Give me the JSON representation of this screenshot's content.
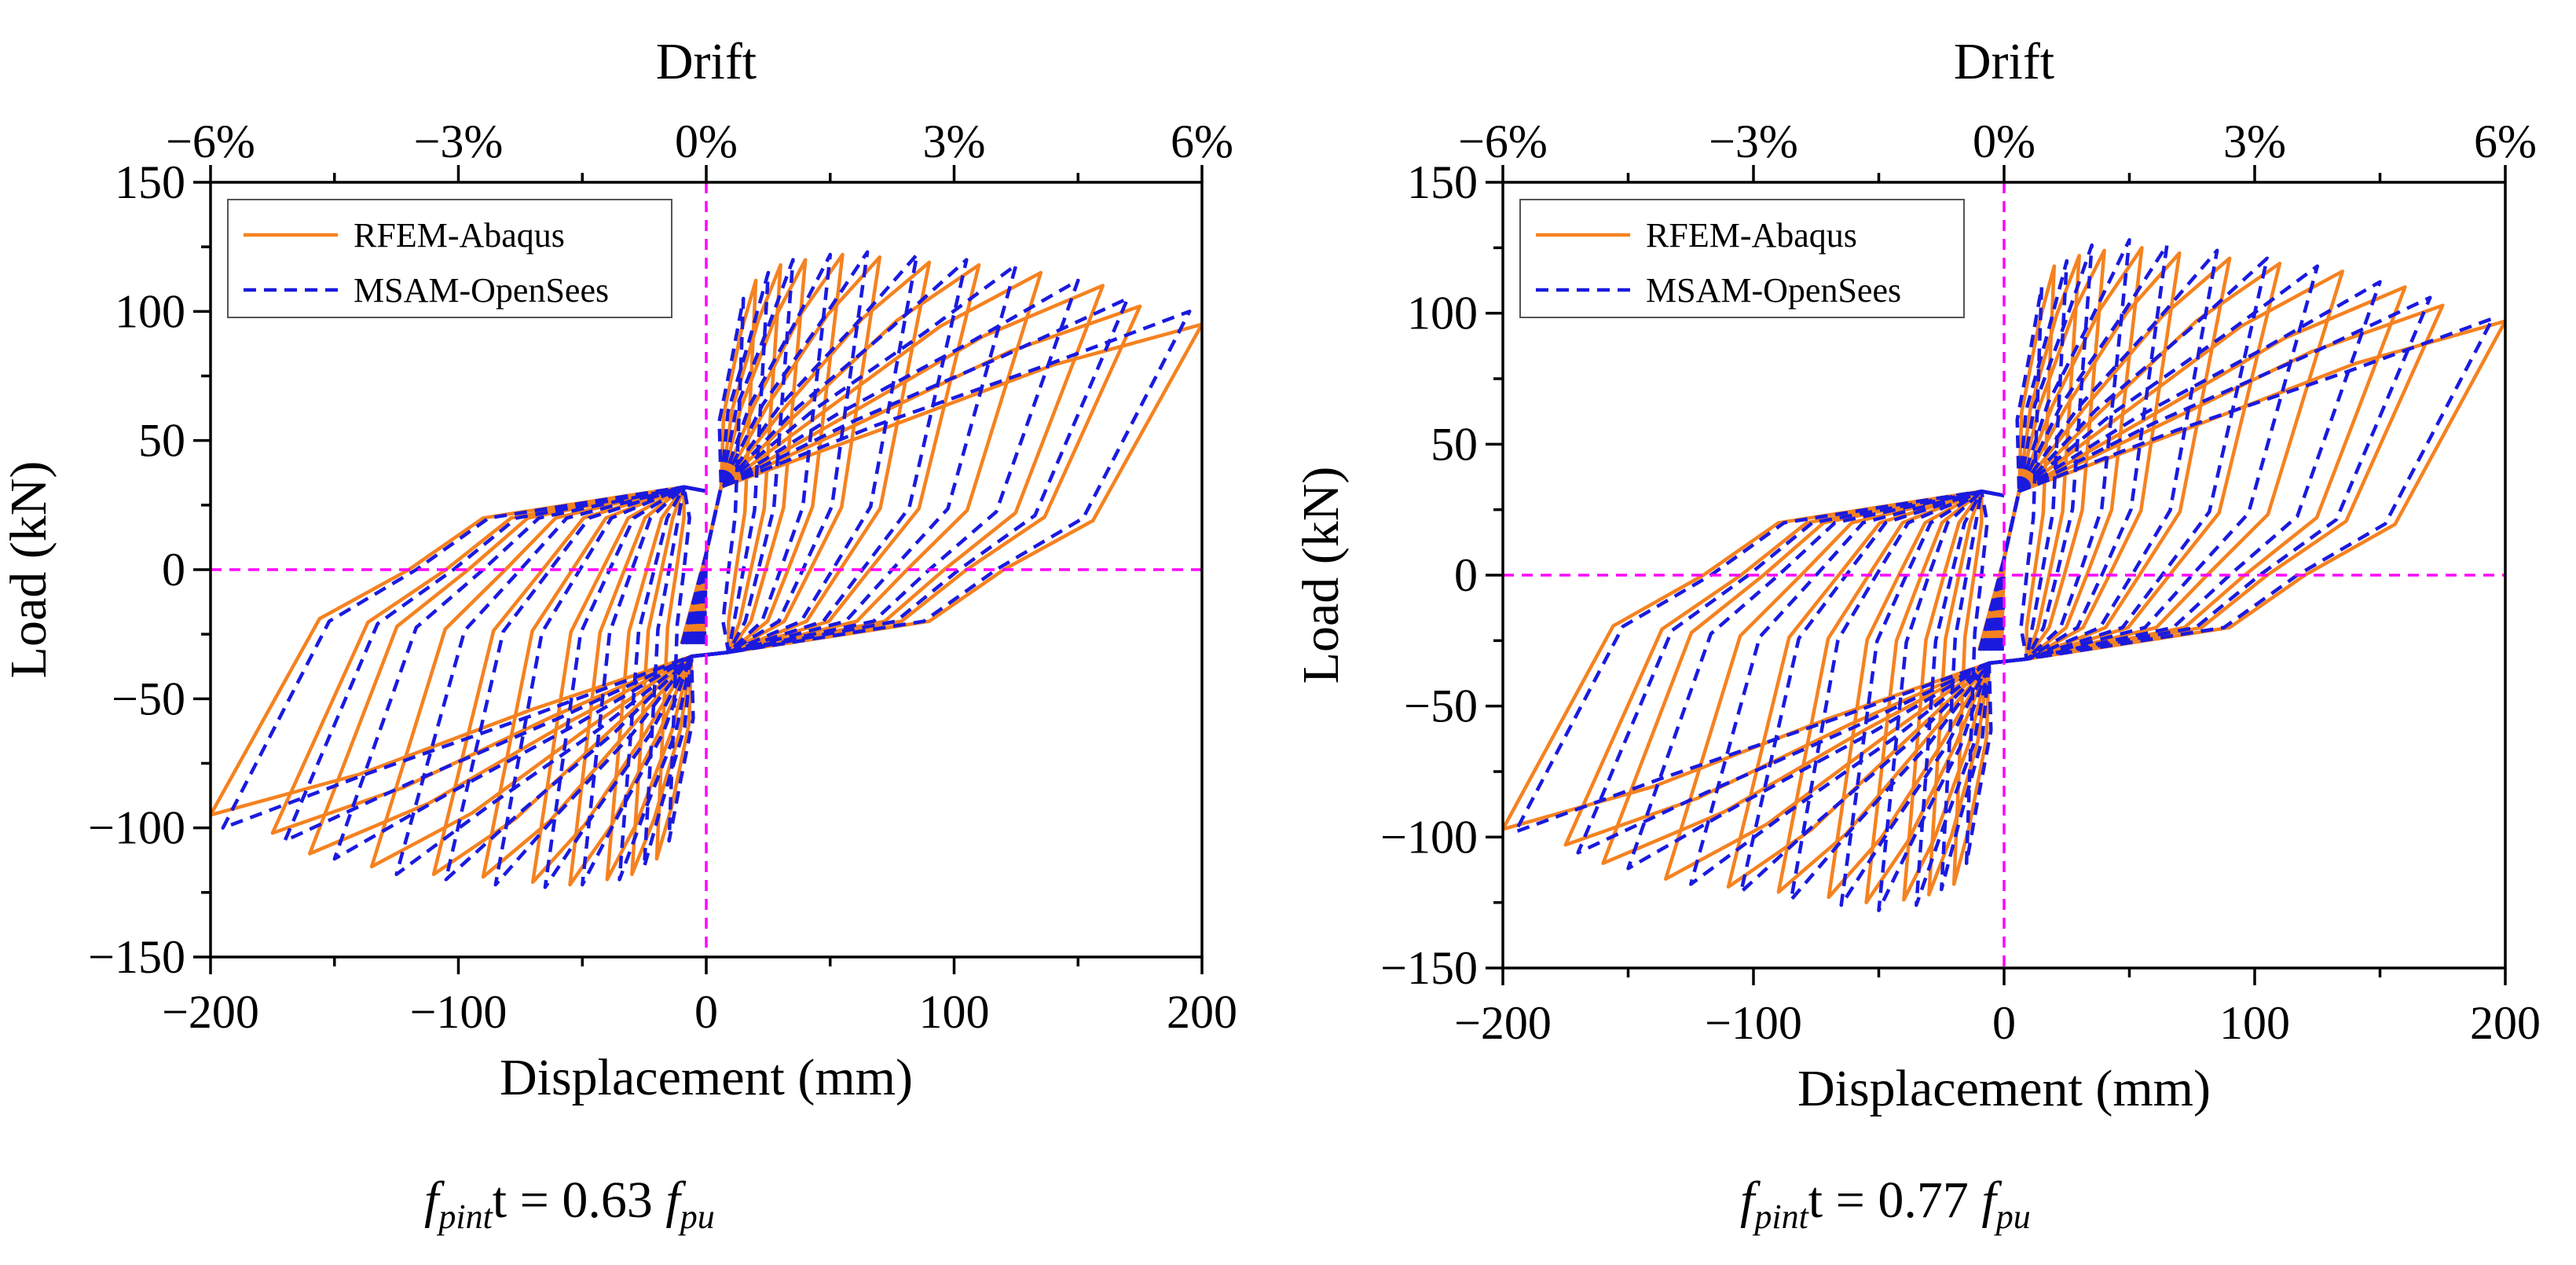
{
  "chart_data": [
    {
      "type": "line",
      "title": "",
      "xlabel": "Displacement (mm)",
      "ylabel": "Load  (kN)",
      "top_xlabel": "Drift",
      "xlim": [
        -200,
        200
      ],
      "ylim": [
        -150,
        150
      ],
      "xticks": [
        -200,
        -100,
        0,
        100,
        200
      ],
      "xtick_labels": [
        "−200",
        "−100",
        "0",
        "100",
        "200"
      ],
      "yticks": [
        -150,
        -100,
        -50,
        0,
        50,
        100,
        150
      ],
      "ytick_labels": [
        "−150",
        "−100",
        "−50",
        "0",
        "50",
        "100",
        "150"
      ],
      "top_ticks_mm": [
        -200,
        -100,
        0,
        100,
        200
      ],
      "top_tick_labels": [
        "−6%",
        "−3%",
        "0%",
        "3%",
        "6%"
      ],
      "legend_position": "top-left",
      "caption": {
        "f1": "f",
        "sub1": "pint",
        "mid": " = 0.63 ",
        "f2": "f",
        "sub2": "pu"
      },
      "series": [
        {
          "name": "RFEM-Abaqus",
          "color": "#f58220",
          "dash": "solid",
          "amplitudes": [
            20,
            30,
            40,
            55,
            70,
            90,
            110,
            135,
            160,
            175,
            200
          ],
          "peaks": [
            112,
            118,
            120,
            122,
            121,
            119,
            118,
            115,
            110,
            102,
            95
          ]
        },
        {
          "name": "MSAM-OpenSees",
          "color": "#1a1adf",
          "dash": "dashed",
          "amplitudes": [
            15,
            25,
            35,
            50,
            65,
            85,
            105,
            125,
            150,
            170,
            195
          ],
          "peaks": [
            105,
            115,
            120,
            122,
            123,
            122,
            120,
            118,
            112,
            105,
            100
          ]
        }
      ]
    },
    {
      "type": "line",
      "title": "",
      "xlabel": "Displacement (mm)",
      "ylabel": "Load  (kN)",
      "top_xlabel": "Drift",
      "xlim": [
        -200,
        200
      ],
      "ylim": [
        -150,
        150
      ],
      "xticks": [
        -200,
        -100,
        0,
        100,
        200
      ],
      "xtick_labels": [
        "−200",
        "−100",
        "0",
        "100",
        "200"
      ],
      "yticks": [
        -150,
        -100,
        -50,
        0,
        50,
        100,
        150
      ],
      "ytick_labels": [
        "−150",
        "−100",
        "−50",
        "0",
        "50",
        "100",
        "150"
      ],
      "top_ticks_mm": [
        -200,
        -100,
        0,
        100,
        200
      ],
      "top_tick_labels": [
        "−6%",
        "−3%",
        "0%",
        "3%",
        "6%"
      ],
      "legend_position": "top-left",
      "caption": {
        "f1": "f",
        "sub1": "pint",
        "mid": " = 0.77 ",
        "f2": "f",
        "sub2": "pu"
      },
      "series": [
        {
          "name": "RFEM-Abaqus",
          "color": "#f58220",
          "dash": "solid",
          "amplitudes": [
            20,
            30,
            40,
            55,
            70,
            90,
            110,
            135,
            160,
            175,
            200
          ],
          "peaks": [
            118,
            122,
            124,
            125,
            123,
            121,
            119,
            116,
            110,
            103,
            97
          ]
        },
        {
          "name": "MSAM-OpenSees",
          "color": "#1a1adf",
          "dash": "dashed",
          "amplitudes": [
            15,
            25,
            35,
            50,
            65,
            85,
            105,
            125,
            150,
            170,
            195
          ],
          "peaks": [
            110,
            120,
            126,
            128,
            126,
            124,
            121,
            118,
            112,
            106,
            98
          ]
        }
      ]
    }
  ]
}
